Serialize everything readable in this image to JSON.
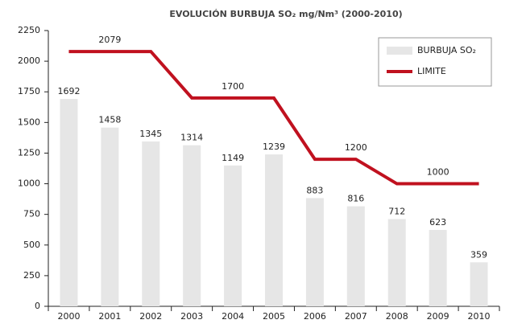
{
  "chart_data": {
    "type": "bar-line",
    "title": "EVOLUCIÓN BURBUJA SO₂ mg/Nm³ (2000-2010)",
    "categories": [
      "2000",
      "2001",
      "2002",
      "2003",
      "2004",
      "2005",
      "2006",
      "2007",
      "2008",
      "2009",
      "2010"
    ],
    "series": [
      {
        "name": "BURBUJA SO₂",
        "type": "bar",
        "color": "#e6e6e6",
        "values": [
          1692,
          1458,
          1345,
          1314,
          1149,
          1239,
          883,
          816,
          712,
          623,
          359
        ]
      },
      {
        "name": "LIMITE",
        "type": "line",
        "color": "#c0111f",
        "values": [
          2079,
          2079,
          2079,
          1700,
          1700,
          1700,
          1200,
          1200,
          1000,
          1000,
          1000
        ],
        "value_labels": [
          null,
          "2079",
          null,
          null,
          "1700",
          null,
          null,
          "1200",
          null,
          "1000",
          null
        ]
      }
    ],
    "ylim": [
      0,
      2250
    ],
    "yticks": [
      0,
      250,
      500,
      750,
      1000,
      1250,
      1500,
      1750,
      2000,
      2250
    ],
    "legend": "top-right"
  }
}
